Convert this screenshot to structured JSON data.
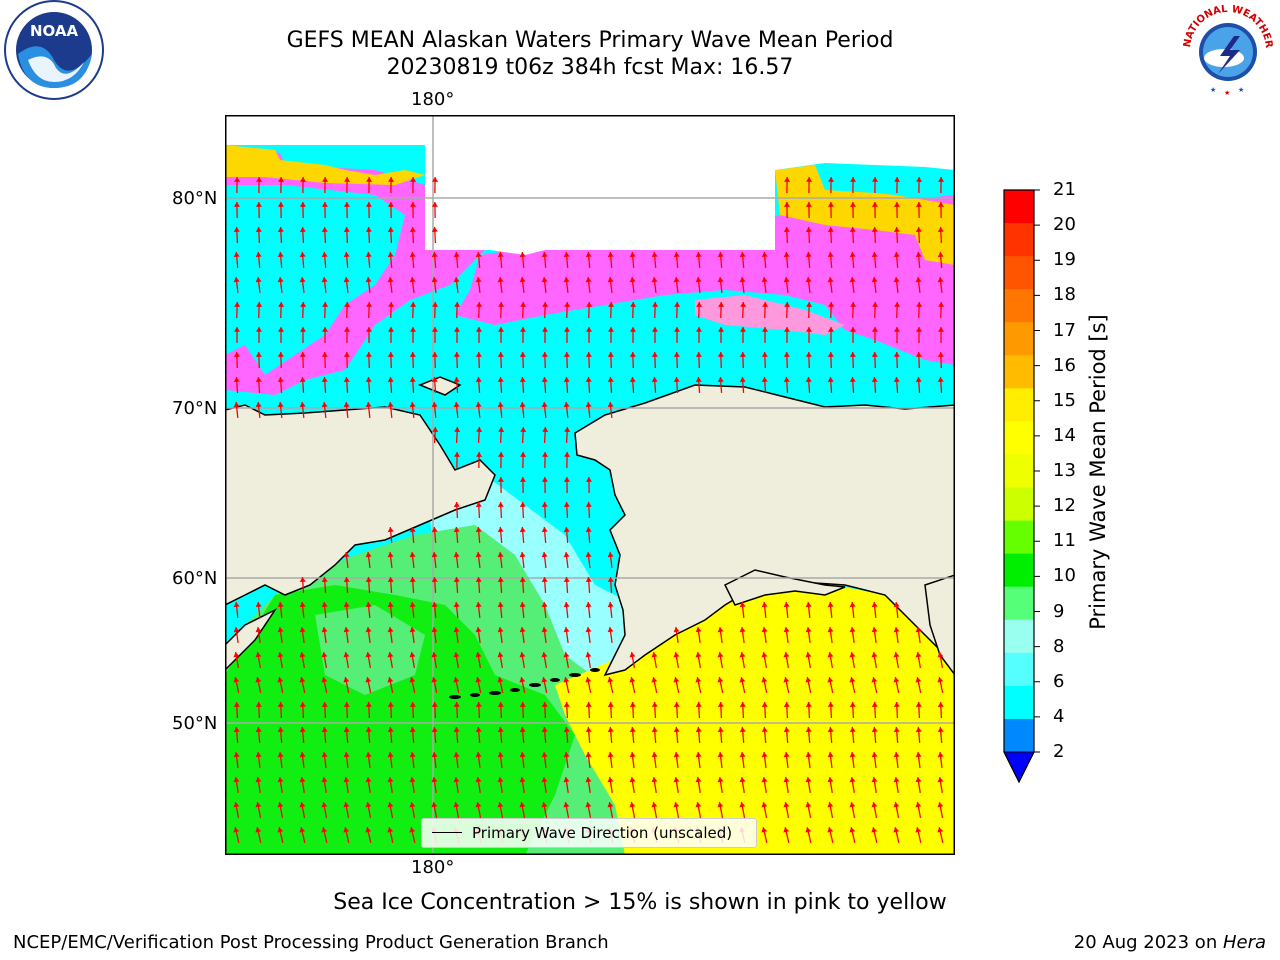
{
  "title": {
    "line1": "GEFS MEAN Alaskan Waters Primary Wave Mean Period",
    "line2": "20230819 t06z 384h fcst   Max: 16.57"
  },
  "map": {
    "lon_labels_top": [
      "180°"
    ],
    "lon_labels_bottom": [
      "180°"
    ],
    "lat_labels": [
      "80°N",
      "70°N",
      "60°N",
      "50°N"
    ],
    "colors": {
      "land": "#efeddc",
      "ocean_cyan": "#00ffff",
      "ice_magenta": "#ff66ff",
      "ice_yellow": "#ffd700",
      "light_cyan": "#99ffff",
      "green_light": "#55ee77",
      "green": "#11ee11",
      "yellow": "#ffff00",
      "arrow": "#ff0000"
    },
    "legend": "Primary Wave Direction (unscaled)"
  },
  "colorbar": {
    "title": "Primary Wave Mean Period [s]",
    "ticks": [
      "21",
      "20",
      "19",
      "18",
      "17",
      "16",
      "15",
      "14",
      "13",
      "12",
      "11",
      "10",
      "9",
      "8",
      "6",
      "4",
      "2"
    ],
    "colors_top_to_bottom": [
      "#ff0000",
      "#ff3300",
      "#ff5500",
      "#ff7700",
      "#ff9900",
      "#ffbb00",
      "#ffee00",
      "#ffff00",
      "#eeff00",
      "#ccff00",
      "#66ff00",
      "#00ee00",
      "#55ff77",
      "#99ffee",
      "#55ffff",
      "#00ffff",
      "#0088ff"
    ],
    "extend_color": "#0000ff"
  },
  "note": "Sea Ice Concentration > 15% is shown in pink to yellow",
  "footer": {
    "left": "NCEP/EMC/Verification Post Processing Product Generation Branch",
    "right_prefix": "20 Aug 2023 on ",
    "right_host": "Hera"
  },
  "logos": {
    "noaa_text": "NOAA",
    "nws_text": "NATIONAL WEATHER SERVICE"
  }
}
